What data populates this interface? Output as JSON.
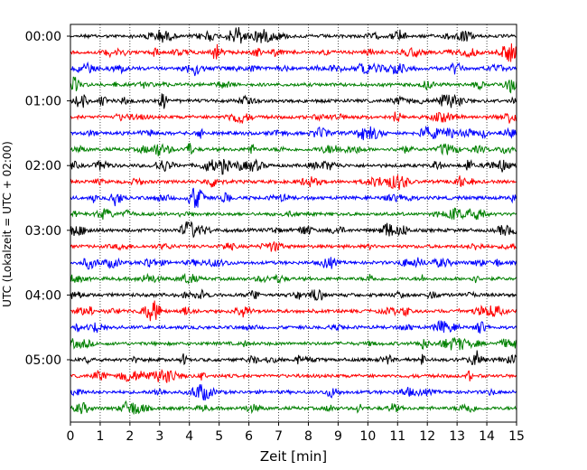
{
  "chart_data": {
    "type": "line",
    "title": "",
    "xlabel": "Zeit  [min]",
    "ylabel": "UTC (Lokalzeit = UTC + 02:00)",
    "xlim": [
      0,
      15
    ],
    "x_ticks": [
      "0",
      "1",
      "2",
      "3",
      "4",
      "5",
      "6",
      "7",
      "8",
      "9",
      "10",
      "11",
      "12",
      "13",
      "14",
      "15"
    ],
    "y_tick_labels": [
      "00:00",
      "01:00",
      "02:00",
      "03:00",
      "04:00",
      "05:00"
    ],
    "y_tick_rows": [
      0,
      4,
      8,
      12,
      16,
      20
    ],
    "grid": "vertical dotted at each minute",
    "row_interval_minutes": 15,
    "traces": 24,
    "color_cycle": [
      "#000000",
      "#ff0000",
      "#0000ff",
      "#008000"
    ],
    "signal": "seismogram (helicorder), relative amplitude"
  }
}
